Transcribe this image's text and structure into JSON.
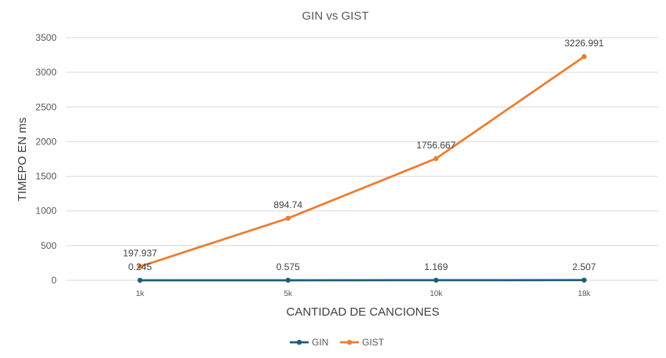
{
  "chart_data": {
    "type": "line",
    "title": "GIN vs GIST",
    "xlabel": "CANTIDAD DE CANCIONES",
    "ylabel": "TIMEPO EN ms",
    "categories": [
      "1k",
      "5k",
      "10k",
      "18k"
    ],
    "ylim": [
      0,
      3500
    ],
    "yticks": [
      0,
      500,
      1000,
      1500,
      2000,
      2500,
      3000,
      3500
    ],
    "grid": true,
    "legend_position": "bottom",
    "series": [
      {
        "name": "GIN",
        "color": "#1f5c7a",
        "values": [
          0.245,
          0.575,
          1.169,
          2.507
        ],
        "labels": [
          "0.245",
          "0.575",
          "1.169",
          "2.507"
        ]
      },
      {
        "name": "GIST",
        "color": "#ed7d31",
        "values": [
          197.937,
          894.74,
          1756.667,
          3226.991
        ],
        "labels": [
          "197.937",
          "894.74",
          "1756.667",
          "3226.991"
        ]
      }
    ]
  }
}
